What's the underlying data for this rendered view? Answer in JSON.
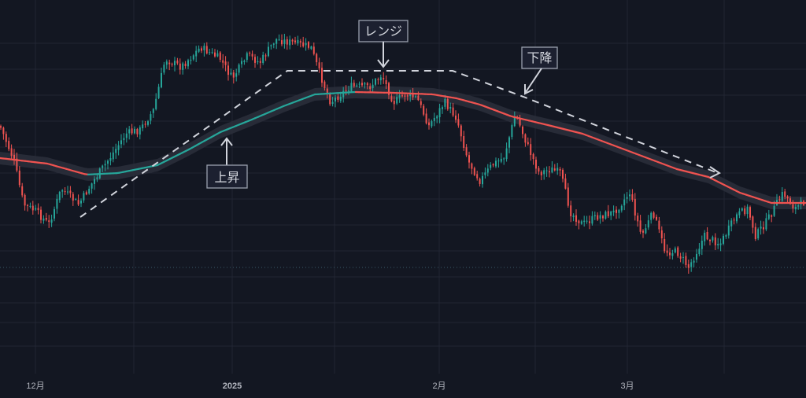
{
  "theme": {
    "background": "#131722",
    "grid": "#222633",
    "up_color": "#26a69a",
    "down_color": "#ef5350",
    "ma_band": "#2a2e3a"
  },
  "chart_data": {
    "type": "candlestick",
    "grid": true,
    "moving_average": {
      "present": true,
      "colors": {
        "rising": "#26a69a",
        "falling": "#ef5350"
      }
    },
    "x_ticks": [
      "12月",
      "2025",
      "2月",
      "3月"
    ],
    "annotations": [
      {
        "id": "rise",
        "text": "上昇"
      },
      {
        "id": "range",
        "text": "レンジ"
      },
      {
        "id": "fall",
        "text": "下降"
      }
    ],
    "path_anchors": [
      [
        0,
        160
      ],
      [
        18,
        205
      ],
      [
        30,
        260
      ],
      [
        45,
        268
      ],
      [
        62,
        285
      ],
      [
        78,
        240
      ],
      [
        100,
        260
      ],
      [
        120,
        228
      ],
      [
        140,
        200
      ],
      [
        160,
        170
      ],
      [
        178,
        165
      ],
      [
        195,
        140
      ],
      [
        210,
        75
      ],
      [
        230,
        85
      ],
      [
        255,
        60
      ],
      [
        280,
        75
      ],
      [
        295,
        100
      ],
      [
        315,
        70
      ],
      [
        330,
        80
      ],
      [
        350,
        50
      ],
      [
        375,
        55
      ],
      [
        395,
        60
      ],
      [
        405,
        90
      ],
      [
        420,
        130
      ],
      [
        445,
        110
      ],
      [
        470,
        110
      ],
      [
        485,
        95
      ],
      [
        500,
        130
      ],
      [
        515,
        120
      ],
      [
        530,
        125
      ],
      [
        545,
        160
      ],
      [
        565,
        130
      ],
      [
        580,
        150
      ],
      [
        595,
        205
      ],
      [
        610,
        230
      ],
      [
        625,
        210
      ],
      [
        640,
        200
      ],
      [
        655,
        145
      ],
      [
        670,
        185
      ],
      [
        685,
        220
      ],
      [
        700,
        215
      ],
      [
        712,
        220
      ],
      [
        725,
        270
      ],
      [
        740,
        285
      ],
      [
        760,
        275
      ],
      [
        780,
        270
      ],
      [
        800,
        245
      ],
      [
        815,
        300
      ],
      [
        830,
        270
      ],
      [
        845,
        320
      ],
      [
        860,
        320
      ],
      [
        875,
        340
      ],
      [
        895,
        300
      ],
      [
        915,
        310
      ],
      [
        935,
        275
      ],
      [
        950,
        265
      ],
      [
        960,
        300
      ],
      [
        975,
        280
      ],
      [
        995,
        245
      ],
      [
        1010,
        265
      ],
      [
        1024,
        255
      ]
    ],
    "ma_anchors": [
      [
        0,
        201
      ],
      [
        60,
        208
      ],
      [
        110,
        222
      ],
      [
        150,
        220
      ],
      [
        200,
        210
      ],
      [
        240,
        190
      ],
      [
        280,
        168
      ],
      [
        320,
        152
      ],
      [
        360,
        135
      ],
      [
        400,
        120
      ],
      [
        450,
        117
      ],
      [
        500,
        118
      ],
      [
        550,
        120
      ],
      [
        580,
        125
      ],
      [
        610,
        133
      ],
      [
        650,
        148
      ],
      [
        700,
        160
      ],
      [
        740,
        170
      ],
      [
        780,
        185
      ],
      [
        820,
        200
      ],
      [
        860,
        215
      ],
      [
        900,
        225
      ],
      [
        940,
        245
      ],
      [
        980,
        258
      ],
      [
        1024,
        258
      ]
    ]
  }
}
